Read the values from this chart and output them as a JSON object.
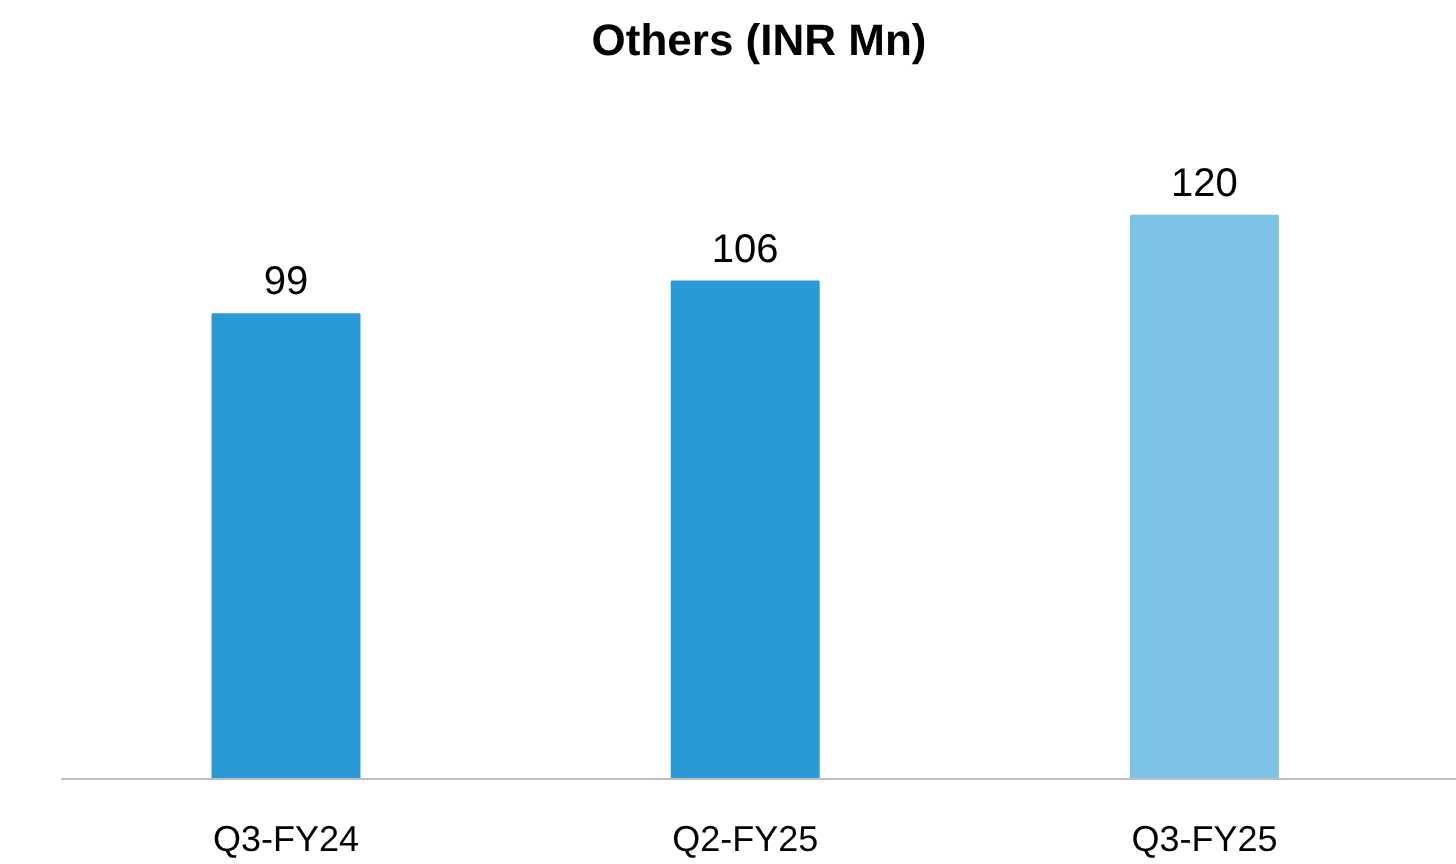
{
  "chart_data": {
    "type": "bar",
    "title": "Others (INR Mn)",
    "categories": [
      "Q3-FY24",
      "Q2-FY25",
      "Q3-FY25"
    ],
    "values": [
      99,
      106,
      120
    ],
    "colors": [
      "#2a9ad6",
      "#2a9ad6",
      "#7cc3e6"
    ],
    "data_labels": true
  }
}
